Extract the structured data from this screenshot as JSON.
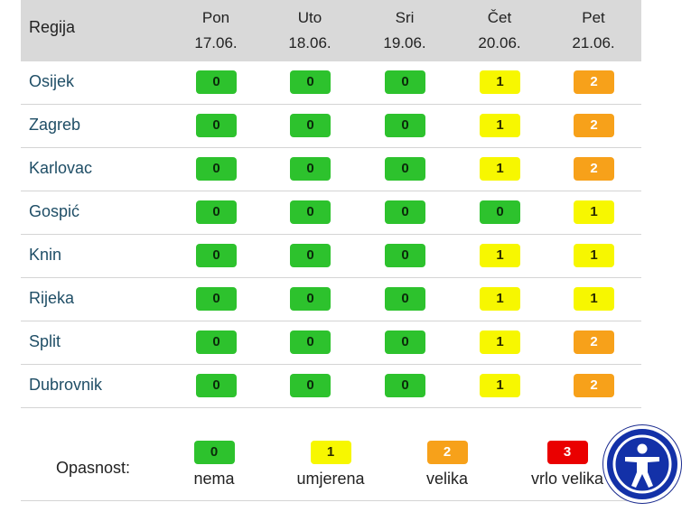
{
  "header": {
    "region_label": "Regija",
    "days": [
      {
        "day": "Pon",
        "date": "17.06."
      },
      {
        "day": "Uto",
        "date": "18.06."
      },
      {
        "day": "Sri",
        "date": "19.06."
      },
      {
        "day": "Čet",
        "date": "20.06."
      },
      {
        "day": "Pet",
        "date": "21.06."
      }
    ]
  },
  "rows": [
    {
      "name": "Osijek",
      "levels": [
        "0",
        "0",
        "0",
        "1",
        "2"
      ]
    },
    {
      "name": "Zagreb",
      "levels": [
        "0",
        "0",
        "0",
        "1",
        "2"
      ]
    },
    {
      "name": "Karlovac",
      "levels": [
        "0",
        "0",
        "0",
        "1",
        "2"
      ]
    },
    {
      "name": "Gospić",
      "levels": [
        "0",
        "0",
        "0",
        "0",
        "1"
      ]
    },
    {
      "name": "Knin",
      "levels": [
        "0",
        "0",
        "0",
        "1",
        "1"
      ]
    },
    {
      "name": "Rijeka",
      "levels": [
        "0",
        "0",
        "0",
        "1",
        "1"
      ]
    },
    {
      "name": "Split",
      "levels": [
        "0",
        "0",
        "0",
        "1",
        "2"
      ]
    },
    {
      "name": "Dubrovnik",
      "levels": [
        "0",
        "0",
        "0",
        "1",
        "2"
      ]
    }
  ],
  "legend": {
    "title": "Opasnost:",
    "items": [
      {
        "value": "0",
        "label": "nema"
      },
      {
        "value": "1",
        "label": "umjerena"
      },
      {
        "value": "2",
        "label": "velika"
      },
      {
        "value": "3",
        "label": "vrlo velika"
      }
    ]
  },
  "colors": {
    "level_0": "#2dc22d",
    "level_1": "#f7f700",
    "level_2": "#f7a11a",
    "level_3": "#ea0000",
    "accessibility": "#1331a8"
  },
  "accessibility_widget": {
    "icon": "accessibility-person-icon"
  }
}
